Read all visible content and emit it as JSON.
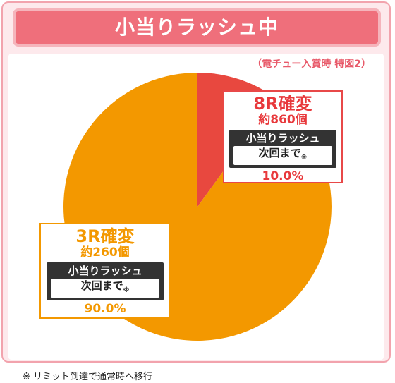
{
  "header": {
    "title": "小当りラッシュ中"
  },
  "note_top": "（電チュー入賞時 特図2）",
  "footnote": "※ リミット到達で通常時へ移行",
  "colors": {
    "red": "#e8483f",
    "orange": "#f39800",
    "pink_frame": "#f2a3ad",
    "header_bg": "#ef6f7b"
  },
  "chart_data": {
    "type": "pie",
    "slices": [
      {
        "label": "8R確変",
        "value": 10.0,
        "color": "#e8483f"
      },
      {
        "label": "3R確変",
        "value": 90.0,
        "color": "#f39800"
      }
    ]
  },
  "callouts": [
    {
      "title": "8R確変",
      "sub": "約860個",
      "box_title": "小当りラッシュ",
      "box_text": "次回まで",
      "mark": "※",
      "pct": "10.0%"
    },
    {
      "title": "3R確変",
      "sub": "約260個",
      "box_title": "小当りラッシュ",
      "box_text": "次回まで",
      "mark": "※",
      "pct": "90.0%"
    }
  ]
}
